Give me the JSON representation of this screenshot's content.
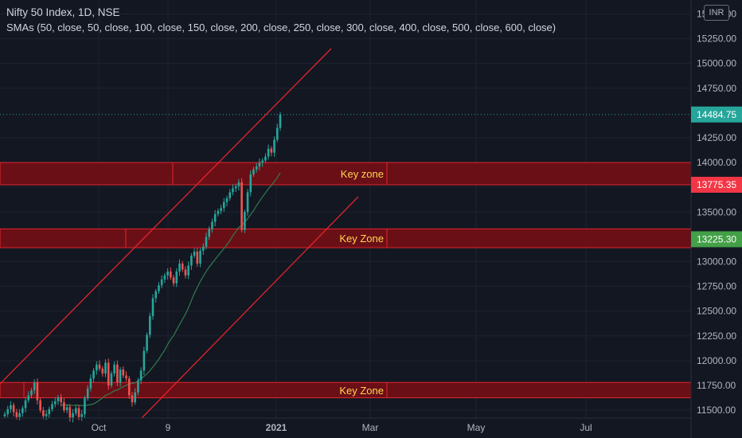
{
  "header": {
    "title": "Nifty 50 Index, 1D, NSE",
    "indicators": "SMAs (50, close, 50, close, 100, close, 150, close, 200, close, 250, close, 300, close, 400, close, 500, close, 600, close)",
    "currency": "INR"
  },
  "colors": {
    "background": "#131722",
    "grid": "#1f2330",
    "up": "#26a69a",
    "down": "#ef5350",
    "zone_fill": "#6b0f17",
    "zone_border": "#e3242b",
    "channel": "#e3242b",
    "sma": "#2e7d4f",
    "label_text": "#ffd54f"
  },
  "chart_data": {
    "type": "candlestick",
    "x_ticks": [
      "Oct",
      "9",
      "2021",
      "Mar",
      "May",
      "Jul"
    ],
    "y_ticks": [
      "11500.00",
      "11750.00",
      "12000.00",
      "12250.00",
      "12500.00",
      "12750.00",
      "13000.00",
      "13250.00",
      "13500.00",
      "13750.00",
      "14000.00",
      "14250.00",
      "14750.00",
      "15000.00",
      "15250.00",
      "15500.00"
    ],
    "ylim": [
      11420,
      15560
    ],
    "price_tags": [
      {
        "value": 14484.75,
        "label": "14484.75",
        "color": "#26a69a"
      },
      {
        "value": 13775.35,
        "label": "13775.35",
        "color": "#f23645"
      },
      {
        "value": 13225.3,
        "label": "13225.30",
        "color": "#43a047"
      }
    ],
    "zones": [
      {
        "label": "Key zone",
        "top": 14000,
        "bottom": 13775
      },
      {
        "label": "Key Zone",
        "top": 13330,
        "bottom": 13140
      },
      {
        "label": "Key Zone",
        "top": 11780,
        "bottom": 11625
      }
    ],
    "closes": [
      11460,
      11510,
      11550,
      11480,
      11430,
      11470,
      11520,
      11600,
      11650,
      11700,
      11780,
      11600,
      11500,
      11440,
      11460,
      11510,
      11560,
      11590,
      11630,
      11580,
      11500,
      11530,
      11420,
      11470,
      11520,
      11430,
      11460,
      11620,
      11720,
      11820,
      11900,
      11960,
      11920,
      11870,
      11980,
      11750,
      11870,
      11960,
      11780,
      11910,
      11850,
      11820,
      11650,
      11580,
      11680,
      11800,
      11900,
      12100,
      12260,
      12450,
      12630,
      12700,
      12760,
      12820,
      12860,
      12900,
      12840,
      12780,
      12900,
      12980,
      12920,
      12860,
      12960,
      13060,
      13100,
      12980,
      13110,
      13150,
      13250,
      13330,
      13400,
      13480,
      13510,
      13540,
      13600,
      13640,
      13700,
      13740,
      13760,
      13800,
      13320,
      13500,
      13700,
      13880,
      13930,
      13960,
      14000,
      14020,
      14060,
      14140,
      14100,
      14230,
      14350,
      14484.75
    ]
  }
}
